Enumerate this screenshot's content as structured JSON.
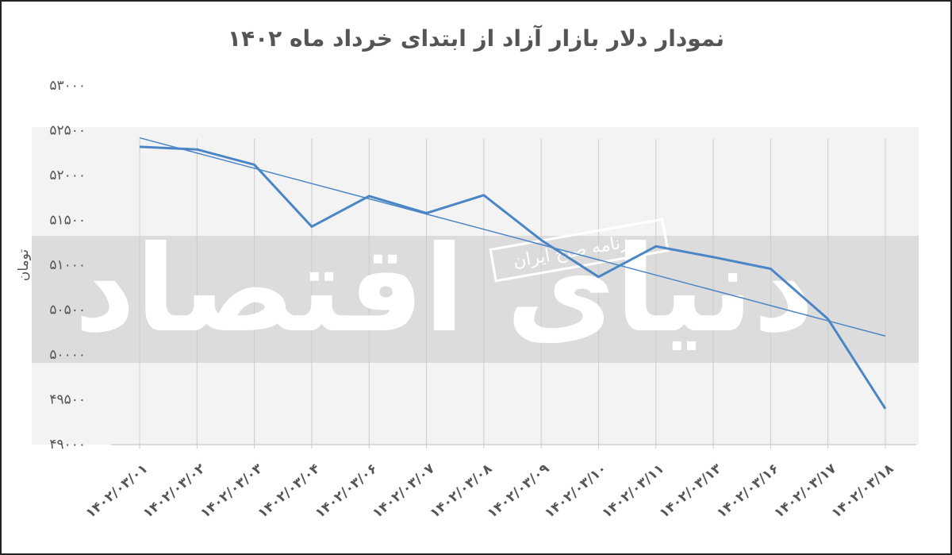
{
  "chart_data": {
    "type": "line",
    "title": "نمودار دلار بازار آزاد از ابتدای خرداد ماه ۱۴۰۲",
    "y_label": "تومان",
    "watermark": [
      "دنیای اقتصاد",
      "روزنامه صبح ایران"
    ],
    "categories": [
      "۱۴۰۲/۰۳/۰۱",
      "۱۴۰۲/۰۳/۰۲",
      "۱۴۰۲/۰۳/۰۳",
      "۱۴۰۲/۰۳/۰۴",
      "۱۴۰۲/۰۳/۰۶",
      "۱۴۰۲/۰۳/۰۷",
      "۱۴۰۲/۰۳/۰۸",
      "۱۴۰۲/۰۳/۰۹",
      "۱۴۰۲/۰۳/۱۰",
      "۱۴۰۲/۰۳/۱۱",
      "۱۴۰۲/۰۳/۱۳",
      "۱۴۰۲/۰۳/۱۶",
      "۱۴۰۲/۰۳/۱۷",
      "۱۴۰۲/۰۳/۱۸"
    ],
    "series": [
      {
        "color": "#4a86c5",
        "width": 3,
        "values": [
          52320,
          52290,
          52120,
          51430,
          51770,
          51580,
          51780,
          51280,
          50870,
          51210,
          51090,
          50960,
          50400,
          49400
        ]
      },
      {
        "color": "#4a86c5",
        "width": 1.5,
        "values": [
          52420,
          52250,
          52080,
          51910,
          51740,
          51570,
          51400,
          51230,
          51060,
          50890,
          50720,
          50550,
          50380,
          50210
        ]
      }
    ],
    "ylim": [
      49000,
      53000
    ],
    "yticks": [
      {
        "value": 49000,
        "label": "۴۹۰۰۰"
      },
      {
        "value": 49500,
        "label": "۴۹۵۰۰"
      },
      {
        "value": 50000,
        "label": "۵۰۰۰۰"
      },
      {
        "value": 50500,
        "label": "۵۰۵۰۰"
      },
      {
        "value": 51000,
        "label": "۵۱۰۰۰"
      },
      {
        "value": 51500,
        "label": "۵۱۵۰۰"
      },
      {
        "value": 52000,
        "label": "۵۲۰۰۰"
      },
      {
        "value": 52500,
        "label": "۵۲۵۰۰"
      },
      {
        "value": 53000,
        "label": "۵۳۰۰۰"
      }
    ],
    "grid": "x"
  }
}
